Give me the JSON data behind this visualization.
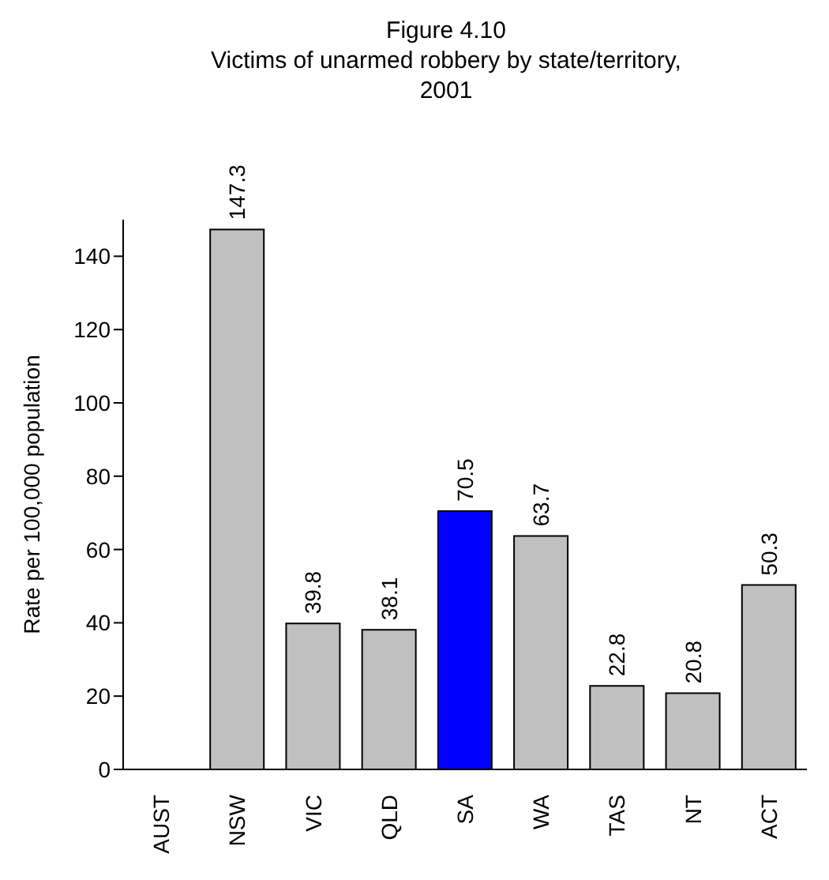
{
  "chart_data": {
    "type": "bar",
    "title": "Figure 4.10",
    "subtitle": "Victims of unarmed robbery by state/territory, 2001",
    "ylabel": "Rate per 100,000 population",
    "categories": [
      "AUST",
      "NSW",
      "VIC",
      "QLD",
      "SA",
      "WA",
      "TAS",
      "NT",
      "ACT"
    ],
    "values": [
      null,
      147.3,
      39.8,
      38.1,
      70.5,
      63.7,
      22.8,
      20.8,
      50.3
    ],
    "colors": [
      "#c0c0c0",
      "#c0c0c0",
      "#c0c0c0",
      "#c0c0c0",
      "#0000ff",
      "#c0c0c0",
      "#c0c0c0",
      "#c0c0c0",
      "#c0c0c0"
    ],
    "ylim": [
      0,
      150
    ],
    "yticks": [
      0,
      20,
      40,
      60,
      80,
      100,
      120,
      140
    ],
    "grid": false,
    "legend": false,
    "data_labels": true
  }
}
